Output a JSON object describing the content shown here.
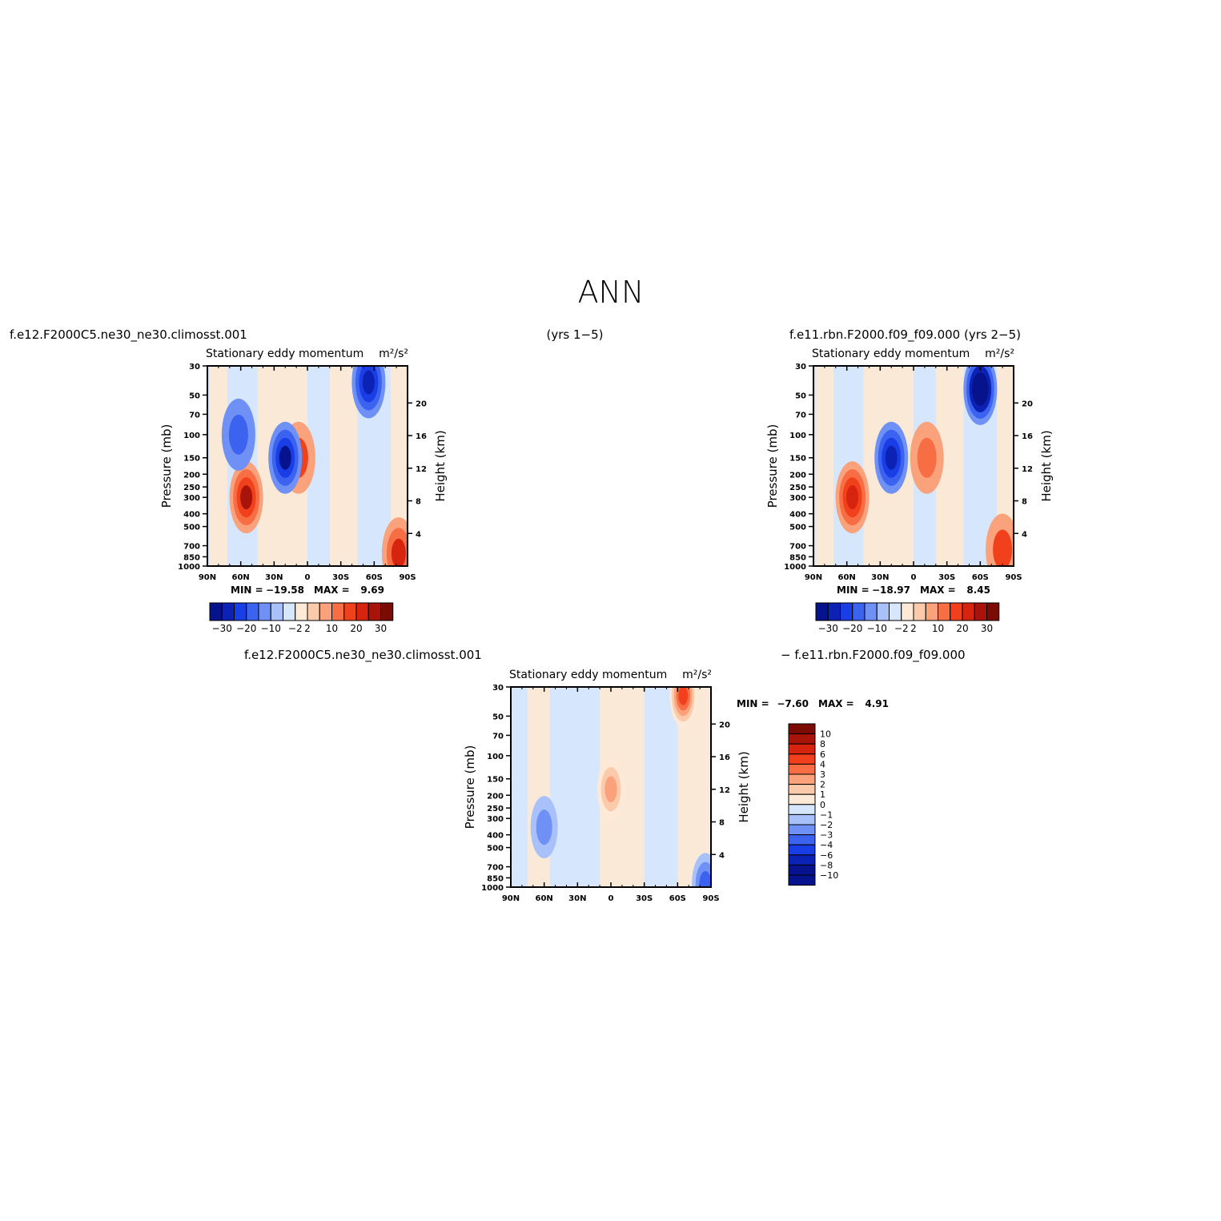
{
  "page_title": "ANN",
  "colors": {
    "neg": [
      "#07138c",
      "#0c22b4",
      "#1a3ee6",
      "#3b63f0",
      "#6f91f5",
      "#a8c1fb",
      "#d6e6fd"
    ],
    "pos": [
      "#fde9d6",
      "#fbcaaa",
      "#f9a27c",
      "#f76d44",
      "#f1401c",
      "#d6240e",
      "#a81409",
      "#7a0b05"
    ]
  },
  "chart_data": [
    {
      "id": "case1",
      "type": "heatmap",
      "panel_title": "Stationary eddy momentum",
      "units": "m²/s²",
      "case_label": "f.e12.F2000C5.ne30_ne30.climosst.001",
      "years_label": "(yrs 1−5)",
      "ylabel_left": "Pressure (mb)",
      "ylabel_right": "Height (km)",
      "x_ticks": [
        "90N",
        "60N",
        "30N",
        "0",
        "30S",
        "60S",
        "90S"
      ],
      "y_ticks_pressure": [
        "30",
        "50",
        "70",
        "100",
        "150",
        "200",
        "250",
        "300",
        "400",
        "500",
        "700",
        "850",
        "1000"
      ],
      "y_ticks_height": [
        "20",
        "16",
        "12",
        "8",
        "4"
      ],
      "ylim_mb": [
        1000,
        30
      ],
      "min_label": "MIN =",
      "min": "−19.58",
      "max_label": "MAX =",
      "max": "9.69",
      "colorbar_labels": [
        "−30",
        "−20",
        "−10",
        "−2",
        "2",
        "10",
        "20",
        "30"
      ],
      "features": [
        {
          "lat": 55,
          "p": 300,
          "value": 6.5
        },
        {
          "lat": 8,
          "p": 150,
          "value": 4.0
        },
        {
          "lat": 20,
          "p": 150,
          "value": -6.5
        },
        {
          "lat": -55,
          "p": 40,
          "value": -6.0
        },
        {
          "lat": 62,
          "p": 100,
          "value": -3.5
        },
        {
          "lat": -82,
          "p": 800,
          "value": 5.0
        }
      ]
    },
    {
      "id": "case2",
      "type": "heatmap",
      "panel_title": "Stationary eddy momentum",
      "units": "m²/s²",
      "case_label": "f.e11.rbn.F2000.f09_f09.000 (yrs 2−5)",
      "ylabel_left": "Pressure (mb)",
      "ylabel_right": "Height (km)",
      "x_ticks": [
        "90N",
        "60N",
        "30N",
        "0",
        "30S",
        "60S",
        "90S"
      ],
      "y_ticks_pressure": [
        "30",
        "50",
        "70",
        "100",
        "150",
        "200",
        "250",
        "300",
        "400",
        "500",
        "700",
        "850",
        "1000"
      ],
      "y_ticks_height": [
        "20",
        "16",
        "12",
        "8",
        "4"
      ],
      "ylim_mb": [
        1000,
        30
      ],
      "min_label": "MIN =",
      "min": "−18.97",
      "max_label": "MAX =",
      "max": "8.45",
      "colorbar_labels": [
        "−30",
        "−20",
        "−10",
        "−2",
        "2",
        "10",
        "20",
        "30"
      ],
      "features": [
        {
          "lat": 55,
          "p": 300,
          "value": 6.0
        },
        {
          "lat": -12,
          "p": 150,
          "value": 3.5
        },
        {
          "lat": 20,
          "p": 150,
          "value": -6.0
        },
        {
          "lat": -60,
          "p": 45,
          "value": -8.5
        },
        {
          "lat": -80,
          "p": 750,
          "value": 4.0
        }
      ]
    },
    {
      "id": "diff",
      "type": "heatmap",
      "panel_title": "Stationary eddy momentum",
      "units": "m²/s²",
      "case_label_left": "f.e12.F2000C5.ne30_ne30.climosst.001",
      "case_label_right": "− f.e11.rbn.F2000.f09_f09.000",
      "ylabel_left": "Pressure (mb)",
      "ylabel_right": "Height (km)",
      "x_ticks": [
        "90N",
        "60N",
        "30N",
        "0",
        "30S",
        "60S",
        "90S"
      ],
      "y_ticks_pressure": [
        "30",
        "50",
        "70",
        "100",
        "150",
        "200",
        "250",
        "300",
        "400",
        "500",
        "700",
        "850",
        "1000"
      ],
      "y_ticks_height": [
        "20",
        "16",
        "12",
        "8",
        "4"
      ],
      "ylim_mb": [
        1000,
        30
      ],
      "min_label": "MIN =",
      "min": "−7.60",
      "max_label": "MAX =",
      "max": "4.91",
      "colorbar_labels": [
        "10",
        "8",
        "6",
        "4",
        "3",
        "2",
        "1",
        "0",
        "−1",
        "−2",
        "−3",
        "−4",
        "−6",
        "−8",
        "−10"
      ],
      "features": [
        {
          "lat": -65,
          "p": 35,
          "value": 4.9
        },
        {
          "lat": 0,
          "p": 180,
          "value": 2.5
        },
        {
          "lat": 60,
          "p": 350,
          "value": -2.0
        },
        {
          "lat": -85,
          "p": 950,
          "value": -3.0
        }
      ]
    }
  ]
}
